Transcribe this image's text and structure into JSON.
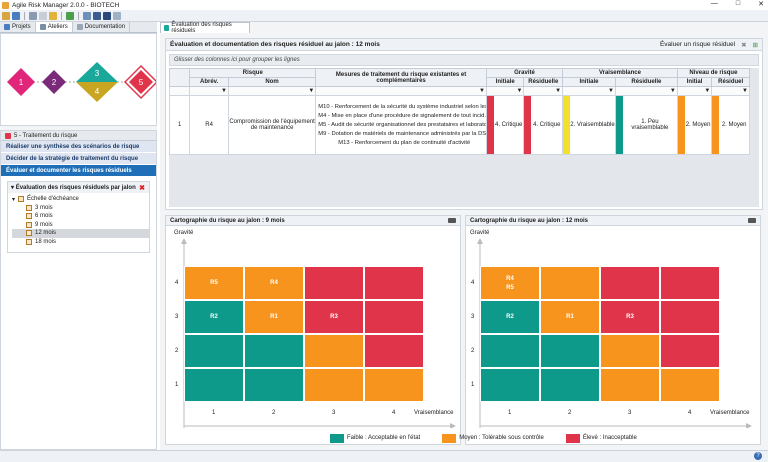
{
  "window": {
    "title": "Agile Risk Manager 2.0.0 - BIOTECH",
    "min": "—",
    "max": "□",
    "close": "✕"
  },
  "left_tabs": [
    {
      "label": "Projets"
    },
    {
      "label": "Ateliers"
    },
    {
      "label": "Documentation"
    }
  ],
  "workshop_diagram": {
    "steps": [
      {
        "label": "1",
        "color": "#e0257b"
      },
      {
        "label": "2",
        "color": "#7b2a7a"
      },
      {
        "label": "3",
        "color": "#1aa89a"
      },
      {
        "label": "4",
        "color": "#c9a622"
      },
      {
        "label": "5",
        "color": "#e0344a"
      }
    ]
  },
  "treatment_panel": {
    "title": "5 - Traitement du risque",
    "steps": [
      {
        "label": "Réaliser une synthèse des scénarios de risque",
        "active": false
      },
      {
        "label": "Décider de la stratégie de traitement du risque",
        "active": false
      },
      {
        "label": "Évaluer et documenter les risques résiduels",
        "active": true
      }
    ],
    "jalons": {
      "title": "Évaluation des risques résiduels par jalon",
      "root": "Échelle d'échéance",
      "items": [
        "3 mois",
        "6 mois",
        "9 mois",
        "12 mois",
        "18 mois"
      ],
      "selected": "12 mois"
    }
  },
  "doc_tab": {
    "label": "Évaluation des risques résiduels"
  },
  "eval": {
    "title": "Évaluation et documentation des risques résiduel au jalon : 12 mois",
    "action": "Évaluer un risque résiduel",
    "group_hint": "Glisser des colonnes ici pour grouper les lignes",
    "headers": {
      "risque": "Risque",
      "abrev": "Abrév.",
      "nom": "Nom",
      "mesures": "Mesures de traitement du risque existantes et complémentaires",
      "gravite": "Gravité",
      "vraisemblance": "Vraisemblance",
      "niveau": "Niveau de risque",
      "initiale": "Initiale",
      "residuelle": "Résiduelle",
      "initial": "Initial",
      "residuel": "Résiduel"
    },
    "row": {
      "num": "1",
      "abrev": "R4",
      "nom": "Compromission de l'équipement de maintenance",
      "mesures": [
        "M10 - Renforcement de la sécurité du système industriel selon les ...",
        "M4 - Mise en place d'une procédure de signalement de tout incid...",
        "M5 - Audit de sécurité organisationnel des prestataires et laborato...",
        "M9 - Dotation de matériels de maintenance administrés par la DS...",
        "M13 - Renforcement du plan de continuité d'activité"
      ],
      "grav_init": "4. Critique",
      "grav_res": "4. Critique",
      "vrai_init": "2. Vraisemblable",
      "vrai_res": "1. Peu vraisemblable",
      "niv_init": "2. Moyen",
      "niv_res": "2. Moyen",
      "colors": {
        "grav_init": "#e0344a",
        "grav_res": "#e0344a",
        "vrai_init": "#f2e02f",
        "vrai_res": "#0d9a8a",
        "niv_init": "#f7941d",
        "niv_res": "#f7941d"
      }
    }
  },
  "maps": [
    {
      "title": "Cartographie du risque au jalon : 9 mois",
      "ylabel": "Gravité",
      "xlabel": "Vraisemblance",
      "ticks_y": [
        "4",
        "3",
        "2",
        "1"
      ],
      "ticks_x": [
        "1",
        "2",
        "3",
        "4"
      ],
      "cells": [
        [
          "R5",
          "R4",
          "",
          ""
        ],
        [
          "R2",
          "R1",
          "R3",
          ""
        ],
        [
          "",
          "",
          "",
          ""
        ],
        [
          "",
          "",
          "",
          ""
        ]
      ]
    },
    {
      "title": "Cartographie du risque au jalon : 12 mois",
      "ylabel": "Gravité",
      "xlabel": "Vraisemblance",
      "ticks_y": [
        "4",
        "3",
        "2",
        "1"
      ],
      "ticks_x": [
        "1",
        "2",
        "3",
        "4"
      ],
      "cells": [
        [
          "R4\nR5",
          "",
          "",
          ""
        ],
        [
          "R2",
          "R1",
          "R3",
          ""
        ],
        [
          "",
          "",
          "",
          ""
        ],
        [
          "",
          "",
          "",
          ""
        ]
      ]
    }
  ],
  "matrix_colors": [
    [
      "#f7941d",
      "#f7941d",
      "#e0344a",
      "#e0344a"
    ],
    [
      "#0d9a8a",
      "#f7941d",
      "#e0344a",
      "#e0344a"
    ],
    [
      "#0d9a8a",
      "#0d9a8a",
      "#f7941d",
      "#e0344a"
    ],
    [
      "#0d9a8a",
      "#0d9a8a",
      "#f7941d",
      "#f7941d"
    ]
  ],
  "legend": [
    {
      "label": "Faible : Acceptable en l'état",
      "color": "#0d9a8a"
    },
    {
      "label": "Moyen : Tolérable sous contrôle",
      "color": "#f7941d"
    },
    {
      "label": "Élevé : Inacceptable",
      "color": "#e0344a"
    }
  ],
  "help": "?"
}
